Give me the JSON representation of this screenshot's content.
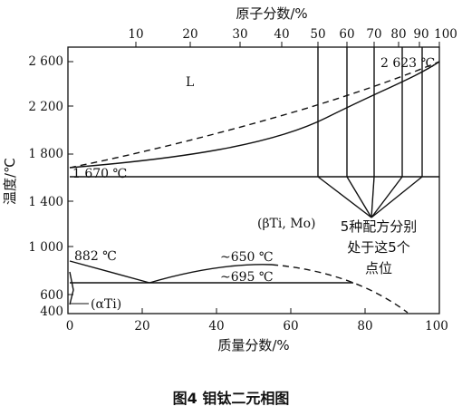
{
  "diagram": {
    "top_axis_title": "原子分数/%",
    "top_ticks": [
      "10",
      "20",
      "30",
      "40",
      "50",
      "60",
      "70",
      "80",
      "90",
      "100"
    ],
    "y_axis_title": "温度/℃",
    "y_ticks": [
      "2 600",
      "2 200",
      "1 800",
      "1 400",
      "1 000",
      "600",
      "400"
    ],
    "x_axis_title": "质量分数/%",
    "x_ticks": [
      "0",
      "20",
      "40",
      "60",
      "80",
      "100"
    ],
    "annotations": {
      "liquid": "L",
      "mo_melting": "2 623 ℃",
      "monotectoid": "1 670 ℃",
      "beta_phase": "(βTi, Mo)",
      "alpha_transition": "882 ℃",
      "temp_650": "~650 ℃",
      "temp_695": "~695 ℃",
      "alpha_phase": "(αTi)"
    },
    "note_lines": [
      "5种配方分别",
      "处于这5个",
      "点位"
    ],
    "caption": "图4   钼钛二元相图"
  }
}
